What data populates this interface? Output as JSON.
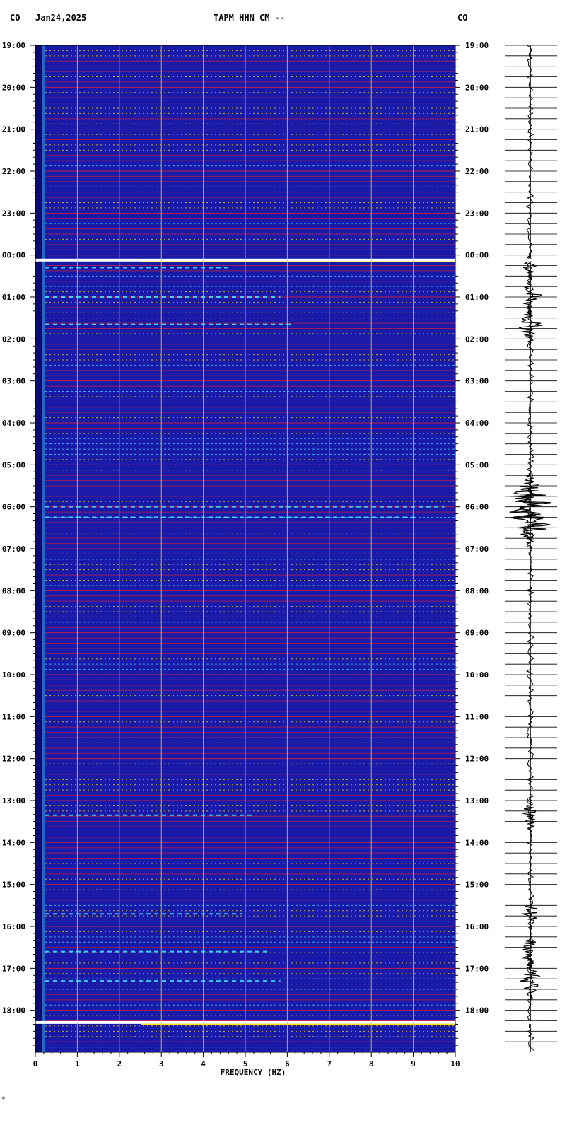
{
  "header": {
    "left_code": "CO",
    "date": "Jan24,2025",
    "station": "TAPM HHN CM --",
    "right_code": "CO"
  },
  "footer_mark": "*",
  "colors": {
    "background": "#1a1aa8",
    "grid": "#c8c878",
    "hour_line": "#ff2020",
    "dash_line": "#ffe000",
    "cyan_line": "#40e0ff",
    "gap_band": "#ffffff",
    "trace": "#000000"
  },
  "chart_data": {
    "type": "heatmap",
    "title": "TAPM HHN CM --",
    "xlabel": "FREQUENCY (HZ)",
    "ylabel": "",
    "xlim": [
      0,
      10
    ],
    "x_ticks": [
      "0",
      "1",
      "2",
      "3",
      "4",
      "5",
      "6",
      "7",
      "8",
      "9",
      "10"
    ],
    "y_tick_labels": [
      "19:00",
      "20:00",
      "21:00",
      "22:00",
      "23:00",
      "00:00",
      "01:00",
      "02:00",
      "03:00",
      "04:00",
      "05:00",
      "06:00",
      "07:00",
      "08:00",
      "09:00",
      "10:00",
      "11:00",
      "12:00",
      "13:00",
      "14:00",
      "15:00",
      "16:00",
      "17:00",
      "18:00"
    ],
    "time_range_hours": [
      0,
      24
    ],
    "data_gaps_hours": [
      5.12,
      23.29
    ],
    "events_hours": [
      {
        "t": 11.0,
        "amp": 1.0
      },
      {
        "t": 11.25,
        "amp": 0.9
      },
      {
        "t": 6.0,
        "amp": 0.35
      },
      {
        "t": 6.65,
        "amp": 0.4
      },
      {
        "t": 21.6,
        "amp": 0.3
      },
      {
        "t": 22.3,
        "amp": 0.35
      },
      {
        "t": 18.35,
        "amp": 0.25
      },
      {
        "t": 5.3,
        "amp": 0.15
      },
      {
        "t": 20.7,
        "amp": 0.2
      }
    ]
  }
}
